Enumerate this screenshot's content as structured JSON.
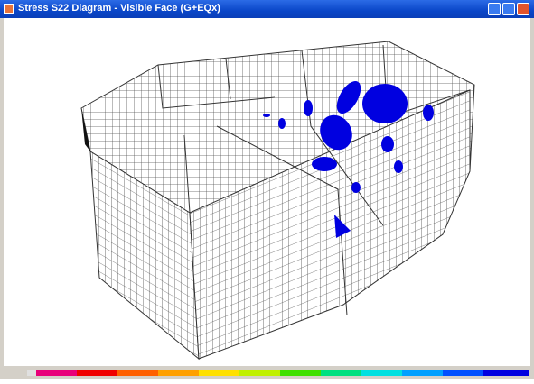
{
  "window": {
    "title": "Stress S22 Diagram - Visible Face  (G+EQx)"
  }
}
